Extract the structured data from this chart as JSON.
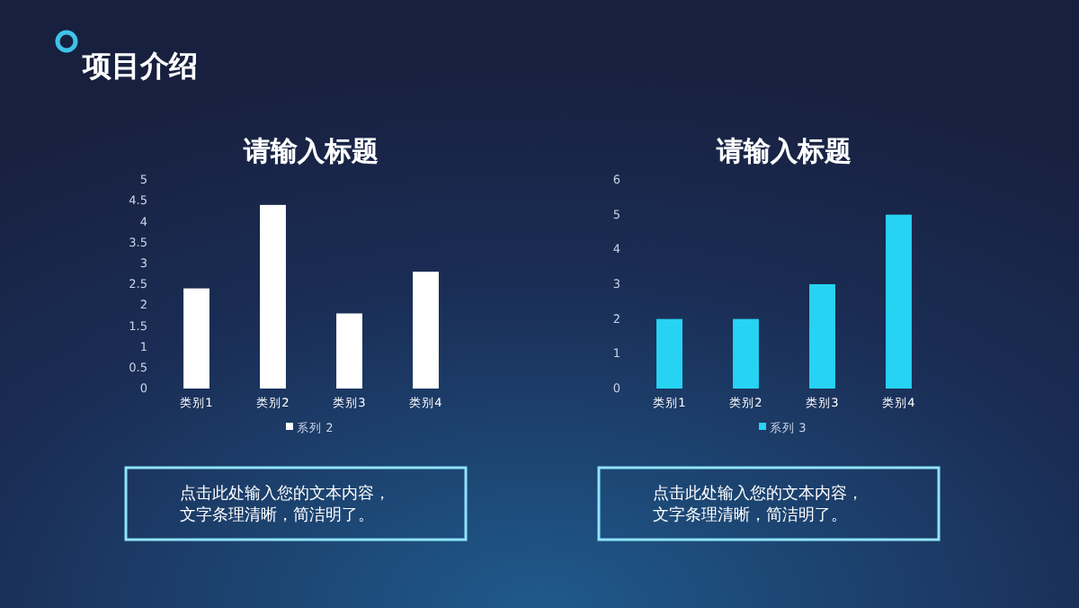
{
  "chart_data": [
    {
      "type": "other",
      "title": "项目介绍"
    },
    {
      "type": "bar",
      "title": "请输入标题",
      "categories": [
        "类别1",
        "类别2",
        "类别3",
        "类别4"
      ],
      "series": [
        {
          "name": "系列 2",
          "color": "#ffffff",
          "values": [
            2.4,
            4.4,
            1.8,
            2.8
          ]
        }
      ],
      "ylim": [
        0,
        5
      ],
      "yticks": [
        0,
        0.5,
        1,
        1.5,
        2,
        2.5,
        3,
        3.5,
        4,
        4.5,
        5
      ],
      "legend": "bottom",
      "annotations": [
        "点击此处输入您的文本内容，文字条理清晰，简洁明了。"
      ]
    },
    {
      "type": "bar",
      "title": "请输入标题",
      "categories": [
        "类别1",
        "类别2",
        "类别3",
        "类别4"
      ],
      "series": [
        {
          "name": "系列 3",
          "color": "#27d3f2",
          "values": [
            2,
            2,
            3,
            5
          ]
        }
      ],
      "ylim": [
        0,
        6
      ],
      "yticks": [
        0,
        1,
        2,
        3,
        4,
        5,
        6
      ],
      "legend": "bottom",
      "annotations": [
        "点击此处输入您的文本内容，文字条理清晰，简洁明了。"
      ]
    }
  ]
}
